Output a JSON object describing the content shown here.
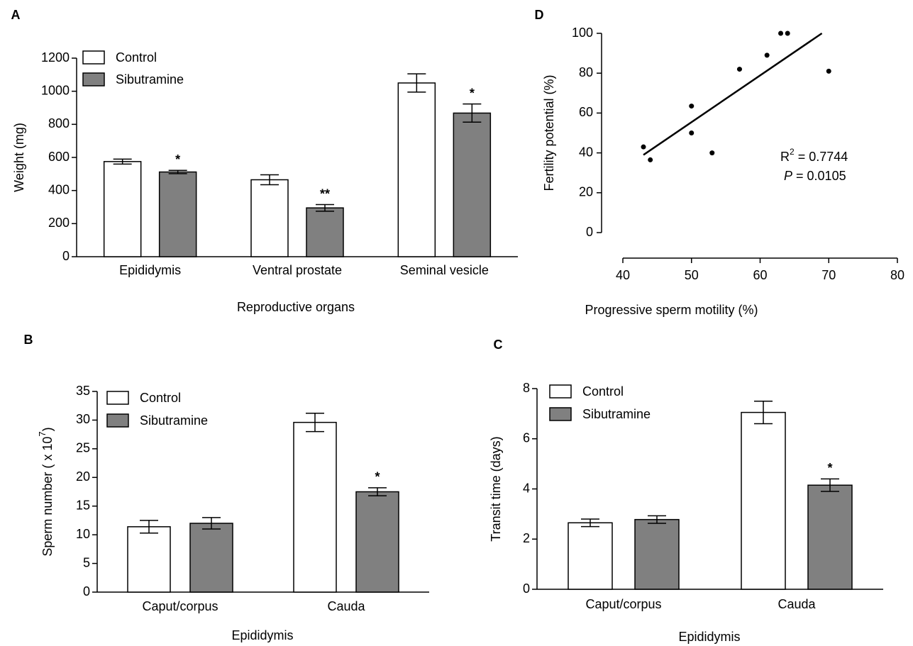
{
  "chart_data": [
    {
      "type": "bar",
      "panel_label": "A",
      "y_label": "Weight (mg)",
      "x_label": "Reproductive organs",
      "categories": [
        "Epididymis",
        "Ventral prostate",
        "Seminal vesicle"
      ],
      "series": [
        {
          "name": "Control",
          "color": "#ffffff",
          "values": [
            575,
            465,
            1050
          ],
          "errors": [
            15,
            30,
            55
          ],
          "significance": [
            null,
            null,
            null
          ]
        },
        {
          "name": "Sibutramine",
          "color": "#808080",
          "values": [
            512,
            295,
            868
          ],
          "errors": [
            10,
            20,
            55
          ],
          "significance": [
            "*",
            "**",
            "*"
          ]
        }
      ],
      "ylim": [
        0,
        1200
      ],
      "yticks": [
        0,
        200,
        400,
        600,
        800,
        1000,
        1200
      ],
      "legend": "upper left"
    },
    {
      "type": "bar",
      "panel_label": "B",
      "y_label": "Sperm number ( x 10",
      "y_label_superscript": "7",
      "y_label_end": ")",
      "x_label": "Epididymis",
      "categories": [
        "Caput/corpus",
        "Cauda"
      ],
      "series": [
        {
          "name": "Control",
          "color": "#ffffff",
          "values": [
            11.4,
            29.6
          ],
          "errors": [
            1.1,
            1.6
          ],
          "significance": [
            null,
            null
          ]
        },
        {
          "name": "Sibutramine",
          "color": "#808080",
          "values": [
            12.0,
            17.5
          ],
          "errors": [
            1.0,
            0.7
          ],
          "significance": [
            null,
            "*"
          ]
        }
      ],
      "ylim": [
        0,
        35
      ],
      "yticks": [
        0,
        5,
        10,
        15,
        20,
        25,
        30,
        35
      ],
      "legend": "upper left"
    },
    {
      "type": "bar",
      "panel_label": "C",
      "y_label": "Transit time (days)",
      "x_label": "Epididymis",
      "categories": [
        "Caput/corpus",
        "Cauda"
      ],
      "series": [
        {
          "name": "Control",
          "color": "#ffffff",
          "values": [
            2.65,
            7.05
          ],
          "errors": [
            0.15,
            0.45
          ],
          "significance": [
            null,
            null
          ]
        },
        {
          "name": "Sibutramine",
          "color": "#808080",
          "values": [
            2.78,
            4.15
          ],
          "errors": [
            0.15,
            0.25
          ],
          "significance": [
            null,
            "*"
          ]
        }
      ],
      "ylim": [
        0,
        8
      ],
      "yticks": [
        0,
        2,
        4,
        6,
        8
      ],
      "legend": "upper left"
    },
    {
      "type": "scatter",
      "panel_label": "D",
      "y_label": "Fertility potential (%)",
      "x_label": "Progressive sperm motility (%)",
      "x": [
        43,
        44,
        50,
        50,
        53,
        57,
        61,
        63,
        64,
        70
      ],
      "values": [
        43,
        36.5,
        63.5,
        50,
        40,
        82,
        89,
        100,
        100,
        81
      ],
      "color": "#000000",
      "fit_line": {
        "x": [
          43,
          69
        ],
        "y": [
          39,
          100
        ]
      },
      "r2_label": "R",
      "r2_superscript": "2",
      "r2_value": " = 0.7744",
      "p_label": "P",
      "p_value": " = 0.0105",
      "xlim": [
        40,
        80
      ],
      "xticks": [
        40,
        50,
        60,
        70,
        80
      ],
      "ylim": [
        0,
        100
      ],
      "yticks": [
        0,
        20,
        40,
        60,
        80,
        100
      ]
    }
  ]
}
